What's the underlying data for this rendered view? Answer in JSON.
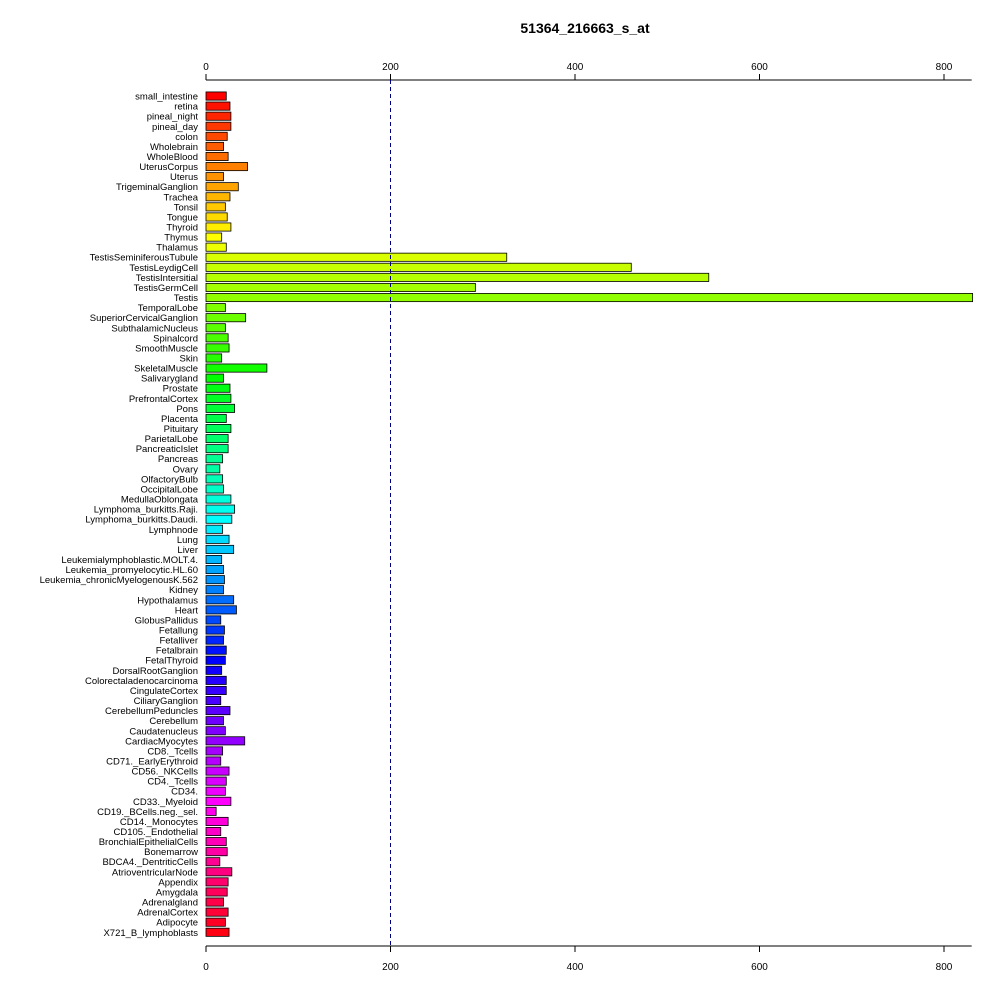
{
  "chart_data": {
    "type": "bar",
    "orientation": "horizontal",
    "title": "51364_216663_s_at",
    "xlabel": "",
    "ylabel": "",
    "xlim": [
      0,
      830
    ],
    "xticks": [
      0,
      200,
      400,
      600,
      800
    ],
    "xtick_labels": [
      "0",
      "200",
      "400",
      "600",
      "800"
    ],
    "reference_line": 200,
    "reference_line_style": "dashed",
    "reference_line_color": "#000080",
    "axis_positions": [
      "top",
      "bottom"
    ],
    "grid": false,
    "legend": "none",
    "color_scheme": "rainbow",
    "categories": [
      "small_intestine",
      "retina",
      "pineal_night",
      "pineal_day",
      "colon",
      "Wholebrain",
      "WholeBlood",
      "UterusCorpus",
      "Uterus",
      "TrigeminalGanglion",
      "Trachea",
      "Tonsil",
      "Tongue",
      "Thyroid",
      "Thymus",
      "Thalamus",
      "TestisSeminiferousTubule",
      "TestisLeydigCell",
      "TestisIntersitial",
      "TestisGermCell",
      "Testis",
      "TemporalLobe",
      "SuperiorCervicalGanglion",
      "SubthalamicNucleus",
      "Spinalcord",
      "SmoothMuscle",
      "Skin",
      "SkeletalMuscle",
      "Salivarygland",
      "Prostate",
      "PrefrontalCortex",
      "Pons",
      "Placenta",
      "Pituitary",
      "ParietalLobe",
      "PancreaticIslet",
      "Pancreas",
      "Ovary",
      "OlfactoryBulb",
      "OccipitalLobe",
      "MedullaOblongata",
      "Lymphoma_burkitts.Raji.",
      "Lymphoma_burkitts.Daudi.",
      "Lymphnode",
      "Lung",
      "Liver",
      "Leukemialymphoblastic.MOLT.4.",
      "Leukemia_promyelocytic.HL.60",
      "Leukemia_chronicMyelogenousK.562",
      "Kidney",
      "Hypothalamus",
      "Heart",
      "GlobusPallidus",
      "Fetallung",
      "Fetalliver",
      "Fetalbrain",
      "FetalThyroid",
      "DorsalRootGanglion",
      "Colorectaladenocarcinoma",
      "CingulateCortex",
      "CiliaryGanglion",
      "CerebellumPeduncles",
      "Cerebellum",
      "Caudatenucleus",
      "CardiacMyocytes",
      "CD8._Tcells",
      "CD71._EarlyErythroid",
      "CD56._NKCells",
      "CD4._Tcells",
      "CD34.",
      "CD33._Myeloid",
      "CD19._BCells.neg._sel.",
      "CD14._Monocytes",
      "CD105._Endothelial",
      "BronchialEpithelialCells",
      "Bonemarrow",
      "BDCA4._DentriticCells",
      "AtrioventricularNode",
      "Appendix",
      "Amygdala",
      "Adrenalgland",
      "AdrenalCortex",
      "Adipocyte",
      "X721_B_lymphoblasts"
    ],
    "values": [
      22,
      26,
      27,
      27,
      23,
      19,
      24,
      45,
      19,
      35,
      26,
      21,
      23,
      27,
      17,
      22,
      326,
      461,
      545,
      292,
      831,
      21,
      43,
      21,
      24,
      25,
      17,
      66,
      19,
      26,
      27,
      31,
      22,
      27,
      24,
      24,
      18,
      15,
      18,
      19,
      27,
      31,
      28,
      18,
      25,
      30,
      17,
      19,
      20,
      19,
      30,
      33,
      16,
      20,
      19,
      22,
      21,
      17,
      22,
      22,
      16,
      26,
      19,
      21,
      42,
      18,
      16,
      25,
      22,
      21,
      27,
      11,
      24,
      16,
      22,
      23,
      15,
      28,
      24,
      23,
      19,
      24,
      21,
      25
    ]
  }
}
